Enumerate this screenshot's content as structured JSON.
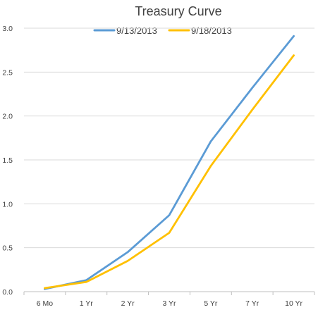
{
  "chart_data": {
    "type": "line",
    "title": "Treasury Curve",
    "categories": [
      "6 Mo",
      "1 Yr",
      "2 Yr",
      "3 Yr",
      "5 Yr",
      "7 Yr",
      "10 Yr"
    ],
    "series": [
      {
        "name": "9/13/2013",
        "color": "#5b9bd5",
        "values": [
          0.03,
          0.13,
          0.45,
          0.87,
          1.71,
          2.32,
          2.91
        ]
      },
      {
        "name": "9/18/2013",
        "color": "#ffc000",
        "values": [
          0.04,
          0.11,
          0.35,
          0.67,
          1.43,
          2.07,
          2.69
        ]
      }
    ],
    "yticks": [
      "0.0",
      "0.5",
      "1.0",
      "1.5",
      "2.0",
      "2.5",
      "3.0"
    ],
    "ylim": [
      0,
      3.0
    ],
    "grid": true,
    "legend": "top"
  }
}
